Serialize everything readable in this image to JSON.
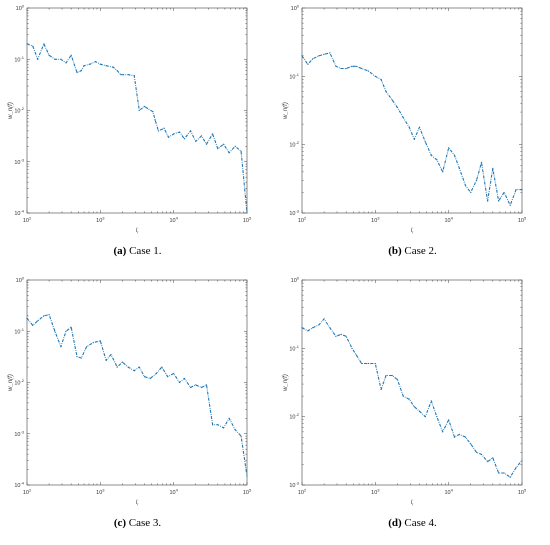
{
  "chart_data": [
    {
      "type": "line",
      "caption_label": "(a)",
      "caption_text": "Case 1.",
      "xlabel": "l_i",
      "ylabel": "w_n(f)",
      "xscale": "log",
      "yscale": "log",
      "xlim": [
        100,
        100000
      ],
      "ylim": [
        0.0001,
        1
      ],
      "xticks": [
        "10^2",
        "10^3",
        "10^4",
        "10^5"
      ],
      "yticks": [
        "10^0",
        "10^-1",
        "10^-2",
        "10^-3",
        "10^-4"
      ],
      "line_color": "#1f77b4",
      "line_style": "dashdot",
      "series": [
        {
          "x": [
            100,
            120,
            140,
            170,
            200,
            240,
            290,
            340,
            400,
            480,
            550,
            600,
            720,
            860,
            1000,
            1200,
            1500,
            1700,
            1900,
            2400,
            2900,
            3400,
            4000,
            4400,
            5200,
            5600,
            6200,
            7400,
            8500,
            10000,
            12000,
            14000,
            17000,
            20000,
            24000,
            28000,
            34000,
            40000,
            48000,
            57000,
            69000,
            83000,
            100000
          ],
          "y": [
            0.2,
            0.18,
            0.1,
            0.2,
            0.12,
            0.1,
            0.1,
            0.085,
            0.12,
            0.055,
            0.06,
            0.075,
            0.08,
            0.09,
            0.08,
            0.075,
            0.07,
            0.06,
            0.05,
            0.05,
            0.048,
            0.01,
            0.012,
            0.011,
            0.0095,
            0.0065,
            0.004,
            0.0045,
            0.003,
            0.0035,
            0.0038,
            0.0028,
            0.004,
            0.0025,
            0.0032,
            0.0022,
            0.0035,
            0.0018,
            0.0022,
            0.0015,
            0.002,
            0.0016,
            0.0001
          ]
        }
      ]
    },
    {
      "type": "line",
      "caption_label": "(b)",
      "caption_text": "Case 2.",
      "xlabel": "l_i",
      "ylabel": "w_n(f)",
      "xscale": "log",
      "yscale": "log",
      "xlim": [
        100,
        100000
      ],
      "ylim": [
        0.001,
        1
      ],
      "xticks": [
        "10^2",
        "10^3",
        "10^4",
        "10^5"
      ],
      "yticks": [
        "10^0",
        "10^-1",
        "10^-2",
        "10^-3"
      ],
      "line_color": "#1f77b4",
      "line_style": "dashdot",
      "series": [
        {
          "x": [
            100,
            120,
            140,
            170,
            200,
            240,
            290,
            340,
            400,
            480,
            550,
            650,
            800,
            1000,
            1200,
            1400,
            1700,
            2000,
            2400,
            2900,
            3400,
            4000,
            4800,
            5800,
            6900,
            8300,
            10000,
            12000,
            14000,
            17000,
            20000,
            24000,
            28000,
            34000,
            40000,
            48000,
            57000,
            69000,
            83000,
            100000
          ],
          "y": [
            0.2,
            0.15,
            0.18,
            0.2,
            0.21,
            0.22,
            0.14,
            0.13,
            0.13,
            0.14,
            0.14,
            0.13,
            0.12,
            0.1,
            0.09,
            0.06,
            0.045,
            0.035,
            0.025,
            0.018,
            0.012,
            0.018,
            0.011,
            0.007,
            0.006,
            0.004,
            0.009,
            0.007,
            0.0045,
            0.0025,
            0.002,
            0.003,
            0.0055,
            0.0015,
            0.0045,
            0.0015,
            0.002,
            0.0013,
            0.0022,
            0.0022
          ]
        }
      ]
    },
    {
      "type": "line",
      "caption_label": "(c)",
      "caption_text": "Case 3.",
      "xlabel": "l_i",
      "ylabel": "w_n(f)",
      "xscale": "log",
      "yscale": "log",
      "xlim": [
        100,
        100000
      ],
      "ylim": [
        0.0001,
        1
      ],
      "xticks": [
        "10^2",
        "10^3",
        "10^4",
        "10^5"
      ],
      "yticks": [
        "10^0",
        "10^-1",
        "10^-2",
        "10^-3",
        "10^-4"
      ],
      "line_color": "#1f77b4",
      "line_style": "dashdot",
      "series": [
        {
          "x": [
            100,
            120,
            140,
            170,
            200,
            240,
            290,
            340,
            400,
            480,
            550,
            650,
            800,
            1000,
            1200,
            1400,
            1700,
            2000,
            2400,
            2900,
            3400,
            4000,
            4800,
            5800,
            6900,
            8300,
            10000,
            12000,
            14000,
            17000,
            20000,
            24000,
            28000,
            34000,
            40000,
            48000,
            57000,
            69000,
            83000,
            100000
          ],
          "y": [
            0.18,
            0.13,
            0.16,
            0.2,
            0.21,
            0.1,
            0.05,
            0.1,
            0.12,
            0.032,
            0.03,
            0.05,
            0.06,
            0.065,
            0.027,
            0.035,
            0.02,
            0.025,
            0.02,
            0.017,
            0.02,
            0.013,
            0.012,
            0.015,
            0.02,
            0.013,
            0.015,
            0.01,
            0.012,
            0.008,
            0.009,
            0.008,
            0.009,
            0.0015,
            0.0015,
            0.0013,
            0.002,
            0.0012,
            0.0009,
            0.00015
          ]
        }
      ]
    },
    {
      "type": "line",
      "caption_label": "(d)",
      "caption_text": "Case 4.",
      "xlabel": "l_i",
      "ylabel": "w_n(f)",
      "xscale": "log",
      "yscale": "log",
      "xlim": [
        100,
        100000
      ],
      "ylim": [
        0.001,
        1
      ],
      "xticks": [
        "10^2",
        "10^3",
        "10^4",
        "10^5"
      ],
      "yticks": [
        "10^0",
        "10^-1",
        "10^-2",
        "10^-3"
      ],
      "line_color": "#1f77b4",
      "line_style": "dashdot",
      "series": [
        {
          "x": [
            100,
            120,
            140,
            170,
            200,
            240,
            290,
            340,
            400,
            480,
            550,
            650,
            800,
            1000,
            1200,
            1400,
            1700,
            2000,
            2400,
            2900,
            3400,
            4000,
            4800,
            5800,
            6900,
            8300,
            10000,
            12000,
            14000,
            17000,
            20000,
            24000,
            28000,
            34000,
            40000,
            48000,
            57000,
            69000,
            83000,
            100000
          ],
          "y": [
            0.2,
            0.18,
            0.2,
            0.22,
            0.27,
            0.2,
            0.15,
            0.16,
            0.15,
            0.1,
            0.08,
            0.06,
            0.06,
            0.06,
            0.025,
            0.04,
            0.04,
            0.035,
            0.02,
            0.018,
            0.014,
            0.012,
            0.01,
            0.017,
            0.01,
            0.006,
            0.009,
            0.005,
            0.0055,
            0.005,
            0.004,
            0.003,
            0.0028,
            0.0022,
            0.0025,
            0.0015,
            0.0015,
            0.0013,
            0.0018,
            0.0023
          ]
        }
      ]
    }
  ]
}
